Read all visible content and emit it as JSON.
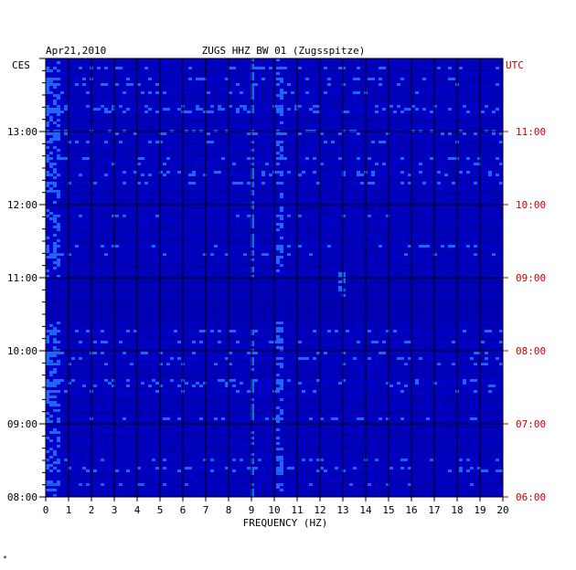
{
  "chart_data": {
    "type": "heatmap",
    "title": "ZUGS HHZ BW 01 (Zugsspitze)",
    "date": "Apr21,2010",
    "xlabel": "FREQUENCY (HZ)",
    "left_axis_label": "CES",
    "right_axis_label": "UTC",
    "xlim": [
      0,
      20
    ],
    "x_ticks": [
      "0",
      "1",
      "2",
      "3",
      "4",
      "5",
      "6",
      "7",
      "8",
      "9",
      "10",
      "11",
      "12",
      "13",
      "14",
      "15",
      "16",
      "17",
      "18",
      "19",
      "20"
    ],
    "left_time_range": [
      "08:00",
      "14:00"
    ],
    "right_time_range": [
      "06:00",
      "12:00"
    ],
    "left_ticks": [
      "08:00",
      "09:00",
      "10:00",
      "11:00",
      "12:00",
      "13:00"
    ],
    "right_ticks": [
      "06:00",
      "07:00",
      "08:00",
      "09:00",
      "10:00",
      "11:00"
    ],
    "colors": {
      "background": "#0000b4",
      "low": "#0000c8",
      "mid": "#1e64ff",
      "high": "#00c8ff",
      "hot": "#ff2800",
      "grid": "#000000",
      "left_labels": "#000000",
      "right_labels": "#cc0000"
    },
    "features": [
      {
        "note": "persistent line",
        "freq_hz": 9.0
      },
      {
        "note": "persistent line",
        "freq_hz": 10.1
      },
      {
        "note": "transient band",
        "freq_hz": 12.9,
        "time_ces": [
          "10:45",
          "11:05"
        ]
      },
      {
        "note": "low-frequency energy",
        "freq_hz": [
          0,
          0.6
        ]
      },
      {
        "note": "quiet interval",
        "time_ces": [
          "10:25",
          "11:00"
        ]
      }
    ]
  },
  "footer_mark": "*"
}
